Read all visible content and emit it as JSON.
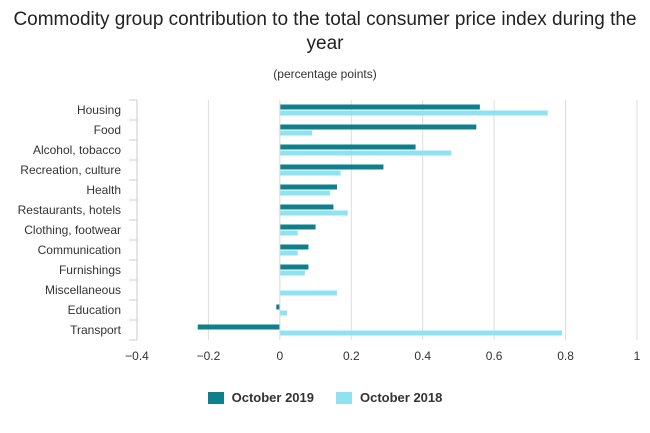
{
  "chart_data": {
    "type": "bar",
    "orientation": "horizontal",
    "title": "Commodity group contribution to the total consumer price index during the year",
    "subtitle": "(percentage points)",
    "categories": [
      "Housing",
      "Food",
      "Alcohol, tobacco",
      "Recreation, culture",
      "Health",
      "Restaurants, hotels",
      "Clothing, footwear",
      "Communication",
      "Furnishings",
      "Miscellaneous",
      "Education",
      "Transport"
    ],
    "series": [
      {
        "name": "October 2019",
        "color": "#0f7f8c",
        "values": [
          0.56,
          0.55,
          0.38,
          0.29,
          0.16,
          0.15,
          0.1,
          0.08,
          0.08,
          0.0,
          -0.01,
          -0.23
        ]
      },
      {
        "name": "October 2018",
        "color": "#8fe2f0",
        "values": [
          0.75,
          0.09,
          0.48,
          0.17,
          0.14,
          0.19,
          0.05,
          0.05,
          0.07,
          0.16,
          0.02,
          0.79
        ]
      }
    ],
    "xlim": [
      -0.4,
      1
    ],
    "xticks": [
      "−0.4",
      "−0.2",
      "0",
      "0.2",
      "0.4",
      "0.6",
      "0.8",
      "1"
    ],
    "grid": true,
    "legend": "bottom"
  }
}
